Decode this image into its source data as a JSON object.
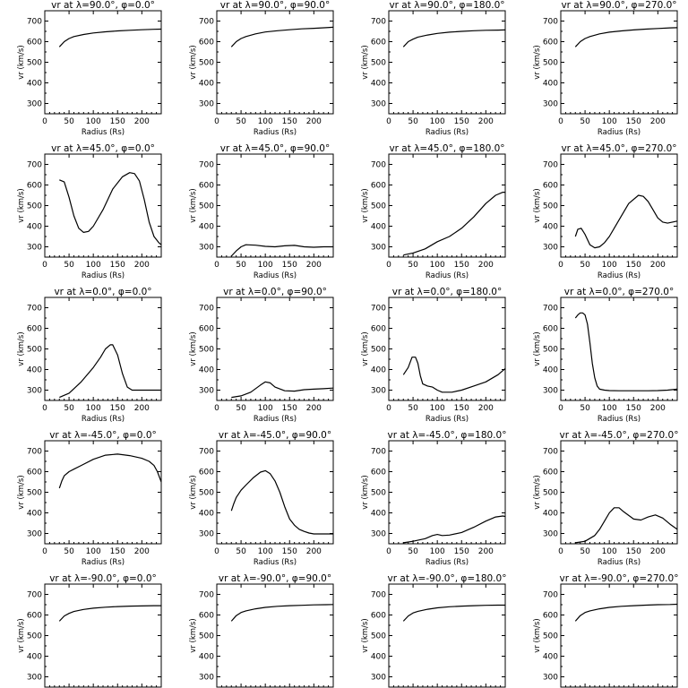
{
  "chart_data": [
    {
      "type": "line",
      "title": "vr at λ=90.0°, φ=0.0°",
      "xlabel": "Radius (Rs)",
      "ylabel": "vr (km/s)",
      "xlim": [
        0,
        240
      ],
      "ylim": [
        250,
        750
      ],
      "xticks": [
        0,
        50,
        100,
        150,
        200
      ],
      "yticks": [
        300,
        400,
        500,
        600,
        700
      ],
      "series": [
        {
          "x": [
            30,
            40,
            50,
            60,
            80,
            100,
            125,
            150,
            175,
            200,
            225,
            240
          ],
          "y": [
            575,
            600,
            615,
            625,
            635,
            642,
            648,
            652,
            655,
            658,
            660,
            661
          ]
        }
      ]
    },
    {
      "type": "line",
      "title": "vr at λ=90.0°, φ=90.0°",
      "xlabel": "Radius (Rs)",
      "ylabel": "vr (km/s)",
      "xlim": [
        0,
        240
      ],
      "ylim": [
        250,
        750
      ],
      "xticks": [
        0,
        50,
        100,
        150,
        200
      ],
      "yticks": [
        300,
        400,
        500,
        600,
        700
      ],
      "series": [
        {
          "x": [
            30,
            40,
            50,
            60,
            80,
            100,
            125,
            150,
            175,
            200,
            225,
            240
          ],
          "y": [
            575,
            600,
            615,
            625,
            638,
            647,
            653,
            658,
            662,
            665,
            668,
            670
          ]
        }
      ]
    },
    {
      "type": "line",
      "title": "vr at λ=90.0°, φ=180.0°",
      "xlabel": "Radius (Rs)",
      "ylabel": "vr (km/s)",
      "xlim": [
        0,
        240
      ],
      "ylim": [
        250,
        750
      ],
      "xticks": [
        0,
        50,
        100,
        150,
        200
      ],
      "yticks": [
        300,
        400,
        500,
        600,
        700
      ],
      "series": [
        {
          "x": [
            30,
            40,
            50,
            60,
            80,
            100,
            125,
            150,
            175,
            200,
            225,
            240
          ],
          "y": [
            575,
            600,
            612,
            622,
            632,
            640,
            646,
            650,
            653,
            655,
            656,
            657
          ]
        }
      ]
    },
    {
      "type": "line",
      "title": "vr at λ=90.0°, φ=270.0°",
      "xlabel": "Radius (Rs)",
      "ylabel": "vr (km/s)",
      "xlim": [
        0,
        240
      ],
      "ylim": [
        250,
        750
      ],
      "xticks": [
        0,
        50,
        100,
        150,
        200
      ],
      "yticks": [
        300,
        400,
        500,
        600,
        700
      ],
      "series": [
        {
          "x": [
            30,
            40,
            50,
            60,
            80,
            100,
            125,
            150,
            175,
            200,
            225,
            240
          ],
          "y": [
            575,
            600,
            615,
            625,
            638,
            646,
            652,
            657,
            661,
            664,
            667,
            668
          ]
        }
      ]
    },
    {
      "type": "line",
      "title": "vr at λ=45.0°, φ=0.0°",
      "xlabel": "Radius (Rs)",
      "ylabel": "vr (km/s)",
      "xlim": [
        0,
        240
      ],
      "ylim": [
        250,
        750
      ],
      "xticks": [
        0,
        50,
        100,
        150,
        200
      ],
      "yticks": [
        300,
        400,
        500,
        600,
        700
      ],
      "series": [
        {
          "x": [
            30,
            40,
            50,
            60,
            70,
            80,
            90,
            100,
            120,
            140,
            160,
            175,
            185,
            195,
            205,
            215,
            225,
            235,
            240
          ],
          "y": [
            625,
            615,
            540,
            450,
            390,
            370,
            375,
            400,
            480,
            580,
            640,
            660,
            655,
            620,
            530,
            420,
            350,
            320,
            310
          ]
        }
      ]
    },
    {
      "type": "line",
      "title": "vr at λ=45.0°, φ=90.0°",
      "xlabel": "Radius (Rs)",
      "ylabel": "vr (km/s)",
      "xlim": [
        0,
        240
      ],
      "ylim": [
        250,
        750
      ],
      "xticks": [
        0,
        50,
        100,
        150,
        200
      ],
      "yticks": [
        300,
        400,
        500,
        600,
        700
      ],
      "series": [
        {
          "x": [
            30,
            40,
            50,
            60,
            80,
            100,
            120,
            140,
            160,
            180,
            200,
            220,
            240
          ],
          "y": [
            255,
            280,
            300,
            310,
            308,
            302,
            300,
            305,
            307,
            300,
            298,
            300,
            300
          ]
        }
      ]
    },
    {
      "type": "line",
      "title": "vr at λ=45.0°, φ=180.0°",
      "xlabel": "Radius (Rs)",
      "ylabel": "vr (km/s)",
      "xlim": [
        0,
        240
      ],
      "ylim": [
        250,
        750
      ],
      "xticks": [
        0,
        50,
        100,
        150,
        200
      ],
      "yticks": [
        300,
        400,
        500,
        600,
        700
      ],
      "series": [
        {
          "x": [
            30,
            50,
            75,
            100,
            125,
            150,
            175,
            200,
            220,
            235,
            240
          ],
          "y": [
            260,
            270,
            290,
            325,
            350,
            390,
            445,
            510,
            550,
            565,
            565
          ]
        }
      ]
    },
    {
      "type": "line",
      "title": "vr at λ=45.0°, φ=270.0°",
      "xlabel": "Radius (Rs)",
      "ylabel": "vr (km/s)",
      "xlim": [
        0,
        240
      ],
      "ylim": [
        250,
        750
      ],
      "xticks": [
        0,
        50,
        100,
        150,
        200
      ],
      "yticks": [
        300,
        400,
        500,
        600,
        700
      ],
      "series": [
        {
          "x": [
            30,
            35,
            42,
            50,
            60,
            70,
            80,
            90,
            100,
            120,
            140,
            160,
            170,
            180,
            190,
            200,
            210,
            220,
            230,
            240
          ],
          "y": [
            350,
            385,
            390,
            360,
            310,
            295,
            300,
            320,
            350,
            430,
            510,
            550,
            545,
            520,
            480,
            440,
            420,
            415,
            420,
            425
          ]
        }
      ]
    },
    {
      "type": "line",
      "title": "vr at λ=0.0°, φ=0.0°",
      "xlabel": "Radius (Rs)",
      "ylabel": "vr (km/s)",
      "xlim": [
        0,
        240
      ],
      "ylim": [
        250,
        750
      ],
      "xticks": [
        0,
        50,
        100,
        150,
        200
      ],
      "yticks": [
        300,
        400,
        500,
        600,
        700
      ],
      "series": [
        {
          "x": [
            30,
            50,
            75,
            100,
            115,
            125,
            135,
            140,
            150,
            160,
            170,
            180,
            200,
            220,
            240
          ],
          "y": [
            265,
            285,
            340,
            410,
            460,
            500,
            520,
            520,
            470,
            380,
            315,
            300,
            300,
            300,
            300
          ]
        }
      ]
    },
    {
      "type": "line",
      "title": "vr at λ=0.0°, φ=90.0°",
      "xlabel": "Radius (Rs)",
      "ylabel": "vr (km/s)",
      "xlim": [
        0,
        240
      ],
      "ylim": [
        250,
        750
      ],
      "xticks": [
        0,
        50,
        100,
        150,
        200
      ],
      "yticks": [
        300,
        400,
        500,
        600,
        700
      ],
      "series": [
        {
          "x": [
            30,
            50,
            70,
            90,
            100,
            110,
            120,
            140,
            160,
            180,
            200,
            220,
            240
          ],
          "y": [
            265,
            272,
            290,
            325,
            340,
            335,
            315,
            297,
            295,
            302,
            305,
            307,
            310
          ]
        }
      ]
    },
    {
      "type": "line",
      "title": "vr at λ=0.0°, φ=180.0°",
      "xlabel": "Radius (Rs)",
      "ylabel": "vr (km/s)",
      "xlim": [
        0,
        240
      ],
      "ylim": [
        250,
        750
      ],
      "xticks": [
        0,
        50,
        100,
        150,
        200
      ],
      "yticks": [
        300,
        400,
        500,
        600,
        700
      ],
      "series": [
        {
          "x": [
            30,
            40,
            48,
            55,
            60,
            65,
            70,
            80,
            90,
            100,
            110,
            130,
            150,
            175,
            200,
            225,
            240
          ],
          "y": [
            375,
            410,
            460,
            460,
            430,
            370,
            330,
            320,
            315,
            300,
            290,
            290,
            300,
            320,
            340,
            375,
            405
          ]
        }
      ]
    },
    {
      "type": "line",
      "title": "vr at λ=0.0°, φ=270.0°",
      "xlabel": "Radius (Rs)",
      "ylabel": "vr (km/s)",
      "xlim": [
        0,
        240
      ],
      "ylim": [
        250,
        750
      ],
      "xticks": [
        0,
        50,
        100,
        150,
        200
      ],
      "yticks": [
        300,
        400,
        500,
        600,
        700
      ],
      "series": [
        {
          "x": [
            30,
            35,
            40,
            45,
            50,
            55,
            60,
            65,
            70,
            75,
            80,
            90,
            100,
            120,
            150,
            180,
            200,
            220,
            240
          ],
          "y": [
            650,
            665,
            675,
            675,
            665,
            620,
            530,
            430,
            360,
            320,
            305,
            300,
            298,
            297,
            297,
            297,
            298,
            300,
            305
          ]
        }
      ]
    },
    {
      "type": "line",
      "title": "vr at λ=-45.0°, φ=0.0°",
      "xlabel": "Radius (Rs)",
      "ylabel": "vr (km/s)",
      "xlim": [
        0,
        240
      ],
      "ylim": [
        250,
        750
      ],
      "xticks": [
        0,
        50,
        100,
        150,
        200
      ],
      "yticks": [
        300,
        400,
        500,
        600,
        700
      ],
      "series": [
        {
          "x": [
            30,
            35,
            40,
            50,
            60,
            75,
            100,
            125,
            150,
            175,
            200,
            215,
            225,
            232,
            240
          ],
          "y": [
            520,
            555,
            580,
            600,
            612,
            630,
            660,
            680,
            685,
            678,
            665,
            650,
            630,
            600,
            550
          ]
        }
      ]
    },
    {
      "type": "line",
      "title": "vr at λ=-45.0°, φ=90.0°",
      "xlabel": "Radius (Rs)",
      "ylabel": "vr (km/s)",
      "xlim": [
        0,
        240
      ],
      "ylim": [
        250,
        750
      ],
      "xticks": [
        0,
        50,
        100,
        150,
        200
      ],
      "yticks": [
        300,
        400,
        500,
        600,
        700
      ],
      "series": [
        {
          "x": [
            30,
            35,
            40,
            50,
            60,
            75,
            90,
            100,
            110,
            120,
            130,
            140,
            150,
            160,
            170,
            180,
            190,
            200,
            220,
            240
          ],
          "y": [
            410,
            445,
            475,
            510,
            535,
            570,
            598,
            605,
            590,
            555,
            500,
            430,
            370,
            340,
            320,
            310,
            302,
            298,
            298,
            298
          ]
        }
      ]
    },
    {
      "type": "line",
      "title": "vr at λ=-45.0°, φ=180.0°",
      "xlabel": "Radius (Rs)",
      "ylabel": "vr (km/s)",
      "xlim": [
        0,
        240
      ],
      "ylim": [
        250,
        750
      ],
      "xticks": [
        0,
        50,
        100,
        150,
        200
      ],
      "yticks": [
        300,
        400,
        500,
        600,
        700
      ],
      "series": [
        {
          "x": [
            30,
            50,
            75,
            90,
            100,
            110,
            125,
            150,
            175,
            200,
            220,
            235,
            240
          ],
          "y": [
            255,
            262,
            275,
            290,
            295,
            290,
            292,
            305,
            330,
            360,
            380,
            385,
            382
          ]
        }
      ]
    },
    {
      "type": "line",
      "title": "vr at λ=-45.0°, φ=270.0°",
      "xlabel": "Radius (Rs)",
      "ylabel": "vr (km/s)",
      "xlim": [
        0,
        240
      ],
      "ylim": [
        250,
        750
      ],
      "xticks": [
        0,
        50,
        100,
        150,
        200
      ],
      "yticks": [
        300,
        400,
        500,
        600,
        700
      ],
      "series": [
        {
          "x": [
            30,
            50,
            70,
            80,
            90,
            100,
            110,
            120,
            130,
            150,
            165,
            180,
            195,
            210,
            225,
            240
          ],
          "y": [
            255,
            262,
            290,
            320,
            360,
            400,
            425,
            425,
            405,
            370,
            365,
            380,
            390,
            375,
            345,
            320
          ]
        }
      ]
    },
    {
      "type": "line",
      "title": "vr at λ=-90.0°, φ=0.0°",
      "xlabel": "Radius (Rs)",
      "ylabel": "vr (km/s)",
      "xlim": [
        0,
        240
      ],
      "ylim": [
        250,
        750
      ],
      "xticks": [
        0,
        50,
        100,
        150,
        200
      ],
      "yticks": [
        300,
        400,
        500,
        600,
        700
      ],
      "series": [
        {
          "x": [
            30,
            40,
            50,
            60,
            80,
            100,
            125,
            150,
            175,
            200,
            225,
            240
          ],
          "y": [
            570,
            595,
            608,
            617,
            627,
            633,
            638,
            641,
            643,
            644,
            645,
            645
          ]
        }
      ]
    },
    {
      "type": "line",
      "title": "vr at λ=-90.0°, φ=90.0°",
      "xlabel": "Radius (Rs)",
      "ylabel": "vr (km/s)",
      "xlim": [
        0,
        240
      ],
      "ylim": [
        250,
        750
      ],
      "xticks": [
        0,
        50,
        100,
        150,
        200
      ],
      "yticks": [
        300,
        400,
        500,
        600,
        700
      ],
      "series": [
        {
          "x": [
            30,
            40,
            50,
            60,
            80,
            100,
            125,
            150,
            175,
            200,
            225,
            240
          ],
          "y": [
            570,
            597,
            612,
            620,
            630,
            637,
            642,
            645,
            647,
            649,
            650,
            651
          ]
        }
      ]
    },
    {
      "type": "line",
      "title": "vr at λ=-90.0°, φ=180.0°",
      "xlabel": "Radius (Rs)",
      "ylabel": "vr (km/s)",
      "xlim": [
        0,
        240
      ],
      "ylim": [
        250,
        750
      ],
      "xticks": [
        0,
        50,
        100,
        150,
        200
      ],
      "yticks": [
        300,
        400,
        500,
        600,
        700
      ],
      "series": [
        {
          "x": [
            30,
            40,
            50,
            60,
            80,
            100,
            125,
            150,
            175,
            200,
            225,
            240
          ],
          "y": [
            570,
            595,
            610,
            618,
            628,
            635,
            640,
            643,
            645,
            647,
            648,
            648
          ]
        }
      ]
    },
    {
      "type": "line",
      "title": "vr at λ=-90.0°, φ=270.0°",
      "xlabel": "Radius (Rs)",
      "ylabel": "vr (km/s)",
      "xlim": [
        0,
        240
      ],
      "ylim": [
        250,
        750
      ],
      "xticks": [
        0,
        50,
        100,
        150,
        200
      ],
      "yticks": [
        300,
        400,
        500,
        600,
        700
      ],
      "series": [
        {
          "x": [
            30,
            40,
            50,
            60,
            80,
            100,
            125,
            150,
            175,
            200,
            225,
            240
          ],
          "y": [
            570,
            597,
            612,
            620,
            630,
            637,
            642,
            645,
            648,
            650,
            651,
            652
          ]
        }
      ]
    }
  ]
}
